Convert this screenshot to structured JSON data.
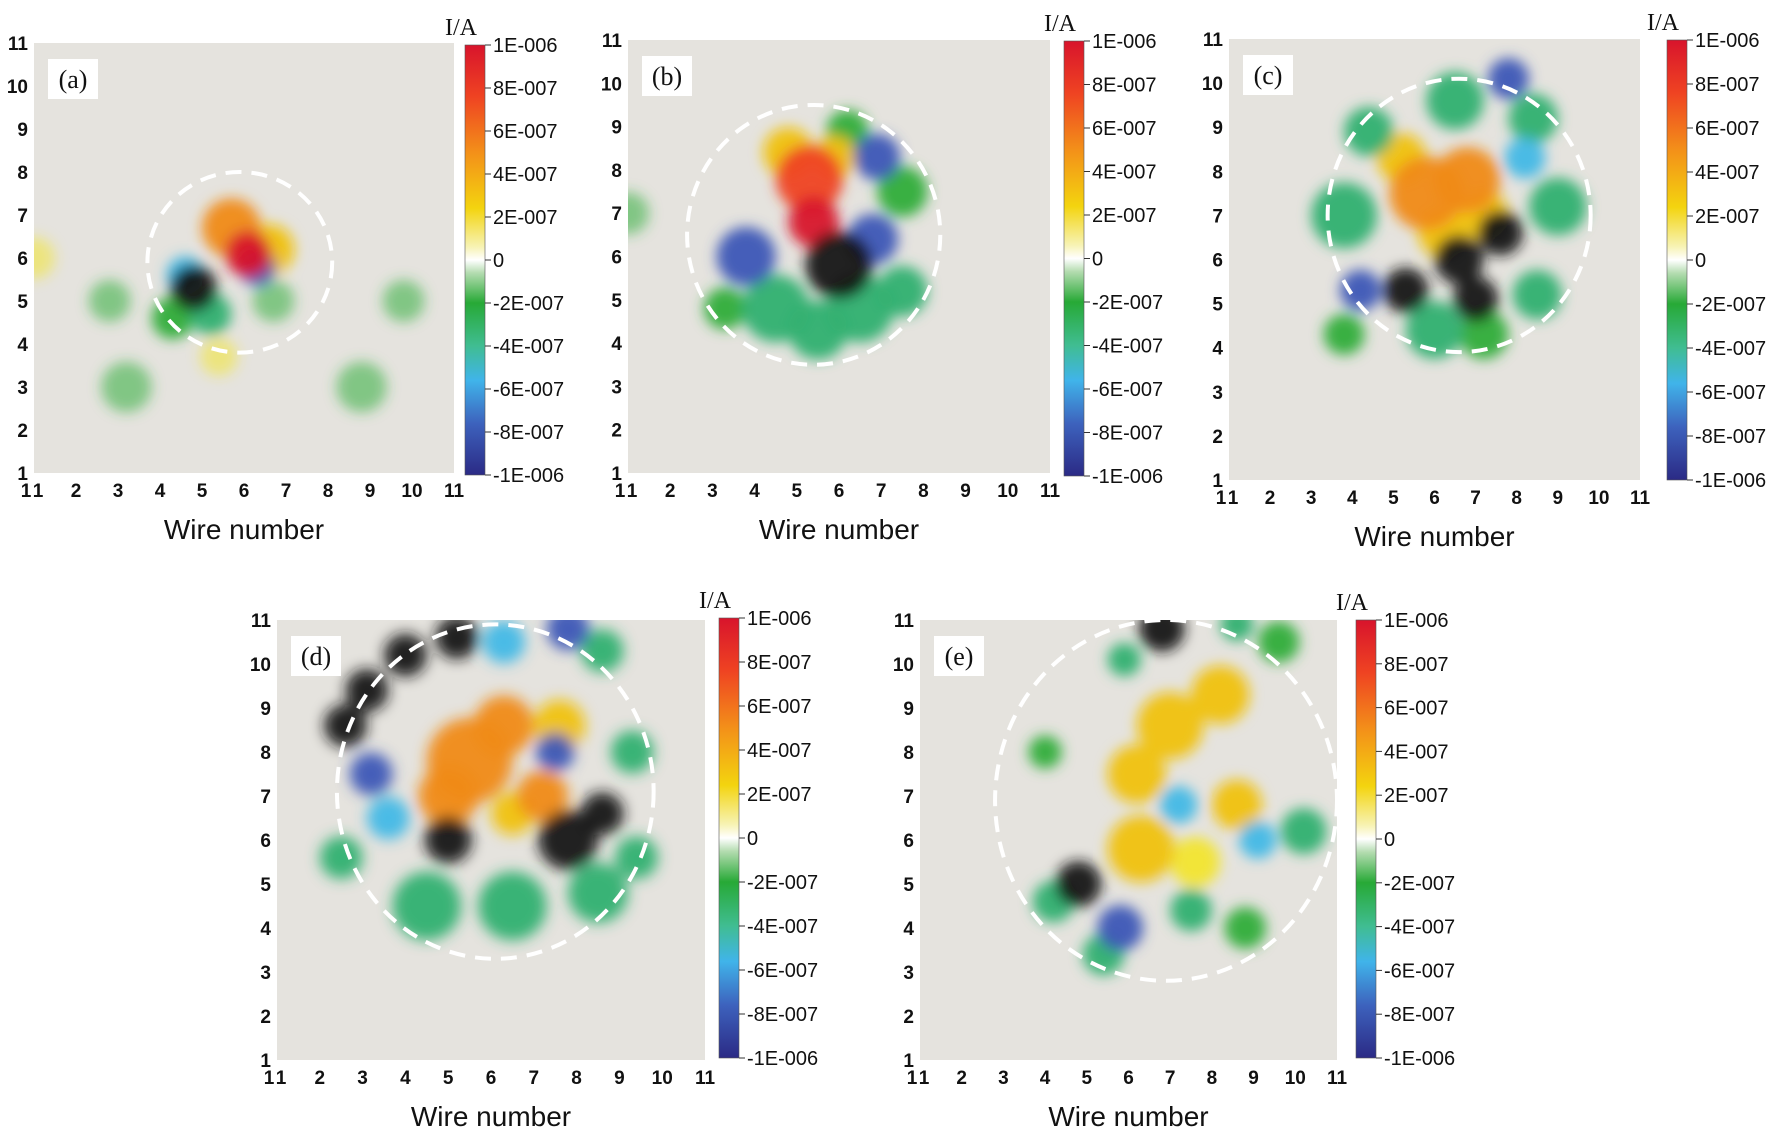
{
  "chart_data": [
    {
      "type": "heatmap",
      "panel_label": "(a)",
      "xlabel": "Wire number",
      "ylabel": "",
      "unit": "I/A",
      "x_ticks": [
        "1",
        "1",
        "2",
        "3",
        "4",
        "5",
        "6",
        "7",
        "8",
        "9",
        "10",
        "11"
      ],
      "y_ticks": [
        "1",
        "2",
        "3",
        "4",
        "5",
        "6",
        "7",
        "8",
        "9",
        "10",
        "11"
      ],
      "xlim": [
        1,
        11
      ],
      "ylim": [
        1,
        11
      ],
      "colorbar": {
        "range": [
          -1e-06,
          1e-06
        ],
        "ticks": [
          "1E-006",
          "8E-007",
          "6E-007",
          "4E-007",
          "2E-007",
          "0",
          "-2E-007",
          "-4E-007",
          "-6E-007",
          "-8E-007",
          "-1E-006"
        ]
      },
      "circle": {
        "cx": 5.9,
        "cy": 5.9,
        "rx": 2.2,
        "ry": 2.1
      },
      "blobs": [
        {
          "x": 6.1,
          "y": 6.1,
          "s": 0.55,
          "v": 1e-06
        },
        {
          "x": 5.7,
          "y": 6.7,
          "s": 0.7,
          "v": 4e-07
        },
        {
          "x": 6.6,
          "y": 6.2,
          "s": 0.6,
          "v": 3e-07
        },
        {
          "x": 4.8,
          "y": 5.3,
          "s": 0.55,
          "v": -1e-06
        },
        {
          "x": 5.2,
          "y": 4.7,
          "s": 0.5,
          "v": -4e-07
        },
        {
          "x": 4.6,
          "y": 5.6,
          "s": 0.45,
          "v": -5e-07
        },
        {
          "x": 6.3,
          "y": 5.8,
          "s": 0.45,
          "v": -6e-07
        },
        {
          "x": 5.4,
          "y": 3.7,
          "s": 0.45,
          "v": 1.2e-07
        },
        {
          "x": 4.3,
          "y": 4.6,
          "s": 0.5,
          "v": -2.5e-07
        },
        {
          "x": 6.7,
          "y": 5.0,
          "s": 0.5,
          "v": -1.2e-07
        },
        {
          "x": 2.8,
          "y": 5.0,
          "s": 0.5,
          "v": -6e-08
        },
        {
          "x": 9.8,
          "y": 5.0,
          "s": 0.5,
          "v": -6e-08
        },
        {
          "x": 1.0,
          "y": 6.0,
          "s": 0.5,
          "v": 6e-08
        },
        {
          "x": 8.8,
          "y": 3.0,
          "s": 0.6,
          "v": -4e-08
        },
        {
          "x": 3.2,
          "y": 3.0,
          "s": 0.6,
          "v": -4e-08
        }
      ]
    },
    {
      "type": "heatmap",
      "panel_label": "(b)",
      "xlabel": "Wire number",
      "ylabel": "",
      "unit": "I/A",
      "x_ticks": [
        "1",
        "1",
        "2",
        "3",
        "4",
        "5",
        "6",
        "7",
        "8",
        "9",
        "10",
        "11"
      ],
      "y_ticks": [
        "1",
        "2",
        "3",
        "4",
        "5",
        "6",
        "7",
        "8",
        "9",
        "10",
        "11"
      ],
      "xlim": [
        1,
        11
      ],
      "ylim": [
        1,
        11
      ],
      "colorbar": {
        "range": [
          -1e-06,
          1e-06
        ],
        "ticks": [
          "1E-006",
          "8E-007",
          "6E-007",
          "4E-007",
          "2E-007",
          "0",
          "-2E-007",
          "-4E-007",
          "-6E-007",
          "-8E-007",
          "-1E-006"
        ]
      },
      "circle": {
        "cx": 5.4,
        "cy": 6.5,
        "rx": 3.0,
        "ry": 3.0
      },
      "blobs": [
        {
          "x": 5.3,
          "y": 7.8,
          "s": 0.8,
          "v": 6e-07
        },
        {
          "x": 5.4,
          "y": 6.8,
          "s": 0.6,
          "v": 9e-07
        },
        {
          "x": 4.8,
          "y": 8.4,
          "s": 0.6,
          "v": 3e-07
        },
        {
          "x": 5.9,
          "y": 8.3,
          "s": 0.5,
          "v": 3e-07
        },
        {
          "x": 6.0,
          "y": 5.8,
          "s": 0.8,
          "v": -1e-06
        },
        {
          "x": 6.8,
          "y": 6.4,
          "s": 0.6,
          "v": -8e-07
        },
        {
          "x": 3.8,
          "y": 6.0,
          "s": 0.7,
          "v": -6e-07
        },
        {
          "x": 6.9,
          "y": 8.3,
          "s": 0.55,
          "v": -7e-07
        },
        {
          "x": 4.5,
          "y": 4.8,
          "s": 0.8,
          "v": -3.5e-07
        },
        {
          "x": 6.5,
          "y": 4.8,
          "s": 0.8,
          "v": -3.5e-07
        },
        {
          "x": 7.5,
          "y": 5.2,
          "s": 0.6,
          "v": -3e-07
        },
        {
          "x": 7.5,
          "y": 7.5,
          "s": 0.6,
          "v": -2.5e-07
        },
        {
          "x": 3.3,
          "y": 4.8,
          "s": 0.5,
          "v": -2.5e-07
        },
        {
          "x": 5.5,
          "y": 4.3,
          "s": 0.7,
          "v": -3e-07
        },
        {
          "x": 6.2,
          "y": 8.9,
          "s": 0.5,
          "v": -2e-07
        },
        {
          "x": 1.0,
          "y": 7.0,
          "s": 0.5,
          "v": -7e-08
        }
      ]
    },
    {
      "type": "heatmap",
      "panel_label": "(c)",
      "xlabel": "Wire number",
      "ylabel": "",
      "unit": "I/A",
      "x_ticks": [
        "1",
        "1",
        "2",
        "3",
        "4",
        "5",
        "6",
        "7",
        "8",
        "9",
        "10",
        "11"
      ],
      "y_ticks": [
        "1",
        "2",
        "3",
        "4",
        "5",
        "6",
        "7",
        "8",
        "9",
        "10",
        "11"
      ],
      "xlim": [
        1,
        11
      ],
      "ylim": [
        1,
        11
      ],
      "colorbar": {
        "range": [
          -1e-06,
          1e-06
        ],
        "ticks": [
          "1E-006",
          "8E-007",
          "6E-007",
          "4E-007",
          "2E-007",
          "0",
          "-2E-007",
          "-4E-007",
          "-6E-007",
          "-8E-007",
          "-1E-006"
        ]
      },
      "circle": {
        "cx": 6.6,
        "cy": 7.0,
        "rx": 3.2,
        "ry": 3.1
      },
      "blobs": [
        {
          "x": 5.8,
          "y": 7.5,
          "s": 0.9,
          "v": 4.5e-07
        },
        {
          "x": 6.8,
          "y": 7.8,
          "s": 0.8,
          "v": 4.5e-07
        },
        {
          "x": 5.2,
          "y": 8.3,
          "s": 0.6,
          "v": 3e-07
        },
        {
          "x": 7.2,
          "y": 7.0,
          "s": 0.6,
          "v": 3.5e-07
        },
        {
          "x": 6.2,
          "y": 6.6,
          "s": 0.6,
          "v": 3e-07
        },
        {
          "x": 6.6,
          "y": 6.0,
          "s": 0.6,
          "v": -1e-06
        },
        {
          "x": 7.6,
          "y": 6.6,
          "s": 0.55,
          "v": -9e-07
        },
        {
          "x": 5.3,
          "y": 5.3,
          "s": 0.55,
          "v": -1e-06
        },
        {
          "x": 7.0,
          "y": 5.1,
          "s": 0.55,
          "v": -9e-07
        },
        {
          "x": 4.2,
          "y": 5.3,
          "s": 0.5,
          "v": -8e-07
        },
        {
          "x": 3.8,
          "y": 7.0,
          "s": 0.8,
          "v": -3.5e-07
        },
        {
          "x": 4.4,
          "y": 8.9,
          "s": 0.6,
          "v": -3e-07
        },
        {
          "x": 6.5,
          "y": 9.6,
          "s": 0.7,
          "v": -3e-07
        },
        {
          "x": 8.4,
          "y": 9.2,
          "s": 0.6,
          "v": -3e-07
        },
        {
          "x": 9.0,
          "y": 7.2,
          "s": 0.7,
          "v": -3e-07
        },
        {
          "x": 8.5,
          "y": 5.2,
          "s": 0.6,
          "v": -3e-07
        },
        {
          "x": 6.0,
          "y": 4.4,
          "s": 0.7,
          "v": -3e-07
        },
        {
          "x": 7.2,
          "y": 4.3,
          "s": 0.6,
          "v": -2.5e-07
        },
        {
          "x": 8.2,
          "y": 8.3,
          "s": 0.5,
          "v": -5e-07
        },
        {
          "x": 7.8,
          "y": 10.1,
          "s": 0.5,
          "v": -6e-07
        },
        {
          "x": 3.8,
          "y": 4.3,
          "s": 0.5,
          "v": -2.5e-07
        }
      ]
    },
    {
      "type": "heatmap",
      "panel_label": "(d)",
      "xlabel": "Wire number",
      "ylabel": "",
      "unit": "I/A",
      "x_ticks": [
        "1",
        "1",
        "2",
        "3",
        "4",
        "5",
        "6",
        "7",
        "8",
        "9",
        "10",
        "11"
      ],
      "y_ticks": [
        "1",
        "2",
        "3",
        "4",
        "5",
        "6",
        "7",
        "8",
        "9",
        "10",
        "11"
      ],
      "xlim": [
        1,
        11
      ],
      "ylim": [
        1,
        11
      ],
      "colorbar": {
        "range": [
          -1e-06,
          1e-06
        ],
        "ticks": [
          "1E-006",
          "8E-007",
          "6E-007",
          "4E-007",
          "2E-007",
          "0",
          "-2E-007",
          "-4E-007",
          "-6E-007",
          "-8E-007",
          "-1E-006"
        ]
      },
      "circle": {
        "cx": 6.1,
        "cy": 7.1,
        "rx": 3.7,
        "ry": 3.8
      },
      "blobs": [
        {
          "x": 5.5,
          "y": 7.8,
          "s": 1.0,
          "v": 5e-07
        },
        {
          "x": 5.0,
          "y": 7.0,
          "s": 0.7,
          "v": 5e-07
        },
        {
          "x": 6.3,
          "y": 8.6,
          "s": 0.7,
          "v": 4.5e-07
        },
        {
          "x": 7.6,
          "y": 8.6,
          "s": 0.6,
          "v": 3e-07
        },
        {
          "x": 7.2,
          "y": 7.0,
          "s": 0.6,
          "v": 4.5e-07
        },
        {
          "x": 6.5,
          "y": 6.6,
          "s": 0.5,
          "v": 3.5e-07
        },
        {
          "x": 5.0,
          "y": 6.0,
          "s": 0.55,
          "v": -1e-06
        },
        {
          "x": 7.8,
          "y": 6.0,
          "s": 0.7,
          "v": -1e-06
        },
        {
          "x": 8.6,
          "y": 6.6,
          "s": 0.5,
          "v": -9e-07
        },
        {
          "x": 7.5,
          "y": 8.0,
          "s": 0.45,
          "v": -6e-07
        },
        {
          "x": 2.6,
          "y": 8.6,
          "s": 0.5,
          "v": -1e-06
        },
        {
          "x": 3.1,
          "y": 9.4,
          "s": 0.5,
          "v": -1e-06
        },
        {
          "x": 4.0,
          "y": 10.2,
          "s": 0.5,
          "v": -1e-06
        },
        {
          "x": 5.2,
          "y": 10.6,
          "s": 0.5,
          "v": -9e-07
        },
        {
          "x": 3.2,
          "y": 7.5,
          "s": 0.5,
          "v": -6e-07
        },
        {
          "x": 3.6,
          "y": 6.5,
          "s": 0.5,
          "v": -5e-07
        },
        {
          "x": 6.3,
          "y": 10.5,
          "s": 0.5,
          "v": -5e-07
        },
        {
          "x": 7.8,
          "y": 10.8,
          "s": 0.5,
          "v": -8e-07
        },
        {
          "x": 8.6,
          "y": 10.3,
          "s": 0.5,
          "v": -4e-07
        },
        {
          "x": 9.3,
          "y": 8.0,
          "s": 0.5,
          "v": -3e-07
        },
        {
          "x": 4.5,
          "y": 4.5,
          "s": 0.8,
          "v": -3e-07
        },
        {
          "x": 6.5,
          "y": 4.5,
          "s": 0.8,
          "v": -3e-07
        },
        {
          "x": 8.5,
          "y": 4.8,
          "s": 0.7,
          "v": -3e-07
        },
        {
          "x": 2.5,
          "y": 5.6,
          "s": 0.5,
          "v": -3e-07
        },
        {
          "x": 9.4,
          "y": 5.6,
          "s": 0.5,
          "v": -3e-07
        }
      ]
    },
    {
      "type": "heatmap",
      "panel_label": "(e)",
      "xlabel": "Wire number",
      "ylabel": "",
      "unit": "I/A",
      "x_ticks": [
        "1",
        "1",
        "2",
        "3",
        "4",
        "5",
        "6",
        "7",
        "8",
        "9",
        "10",
        "11"
      ],
      "y_ticks": [
        "1",
        "2",
        "3",
        "4",
        "5",
        "6",
        "7",
        "8",
        "9",
        "10",
        "11"
      ],
      "xlim": [
        1,
        11
      ],
      "ylim": [
        1,
        11
      ],
      "colorbar": {
        "range": [
          -1e-06,
          1e-06
        ],
        "ticks": [
          "1E-006",
          "8E-007",
          "6E-007",
          "4E-007",
          "2E-007",
          "0",
          "-2E-007",
          "-4E-007",
          "-6E-007",
          "-8E-007",
          "-1E-006"
        ]
      },
      "circle": {
        "cx": 6.9,
        "cy": 6.9,
        "rx": 4.1,
        "ry": 4.1
      },
      "blobs": [
        {
          "x": 7.0,
          "y": 8.6,
          "s": 0.8,
          "v": 3e-07
        },
        {
          "x": 8.2,
          "y": 9.3,
          "s": 0.7,
          "v": 3e-07
        },
        {
          "x": 6.2,
          "y": 7.5,
          "s": 0.7,
          "v": 2.5e-07
        },
        {
          "x": 6.3,
          "y": 5.8,
          "s": 0.8,
          "v": 3e-07
        },
        {
          "x": 7.6,
          "y": 5.5,
          "s": 0.6,
          "v": 2e-07
        },
        {
          "x": 8.6,
          "y": 6.8,
          "s": 0.6,
          "v": 2.5e-07
        },
        {
          "x": 6.8,
          "y": 10.8,
          "s": 0.55,
          "v": -1e-06
        },
        {
          "x": 7.2,
          "y": 6.8,
          "s": 0.45,
          "v": -5e-07
        },
        {
          "x": 9.1,
          "y": 6.0,
          "s": 0.45,
          "v": -5e-07
        },
        {
          "x": 4.8,
          "y": 5.0,
          "s": 0.55,
          "v": -1e-06
        },
        {
          "x": 5.8,
          "y": 4.0,
          "s": 0.55,
          "v": -6e-07
        },
        {
          "x": 5.4,
          "y": 3.4,
          "s": 0.5,
          "v": -3e-07
        },
        {
          "x": 4.2,
          "y": 4.6,
          "s": 0.5,
          "v": -3e-07
        },
        {
          "x": 7.5,
          "y": 4.4,
          "s": 0.5,
          "v": -3e-07
        },
        {
          "x": 8.8,
          "y": 4.0,
          "s": 0.5,
          "v": -2.5e-07
        },
        {
          "x": 10.2,
          "y": 6.2,
          "s": 0.55,
          "v": -3.5e-07
        },
        {
          "x": 9.6,
          "y": 10.5,
          "s": 0.5,
          "v": -2.5e-07
        },
        {
          "x": 8.6,
          "y": 10.9,
          "s": 0.4,
          "v": -4e-07
        },
        {
          "x": 4.0,
          "y": 8.0,
          "s": 0.4,
          "v": -1.5e-07
        },
        {
          "x": 5.9,
          "y": 10.1,
          "s": 0.4,
          "v": -3e-07
        }
      ]
    }
  ]
}
